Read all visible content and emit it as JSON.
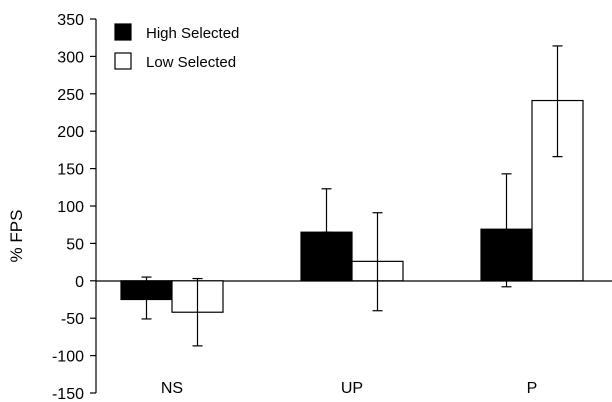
{
  "chart_data": {
    "type": "bar",
    "title": "",
    "xlabel": "",
    "ylabel": "% FPS",
    "ylim": [
      -150,
      350
    ],
    "yticks": [
      -150,
      -100,
      -50,
      0,
      50,
      100,
      150,
      200,
      250,
      300,
      350
    ],
    "grid": false,
    "legend_position": "top-left",
    "categories": [
      "NS",
      "UP",
      "P"
    ],
    "series": [
      {
        "name": "High Selected",
        "color": "#000000",
        "fill": "solid",
        "values": [
          -25,
          65,
          69
        ],
        "error_upper": [
          5,
          123,
          143
        ],
        "error_lower": [
          -51,
          65,
          -8
        ]
      },
      {
        "name": "Low Selected",
        "color": "#000000",
        "fill": "none",
        "values": [
          -42,
          26,
          241
        ],
        "error_upper": [
          3,
          91,
          314
        ],
        "error_lower": [
          -87,
          -40,
          166
        ]
      }
    ]
  }
}
